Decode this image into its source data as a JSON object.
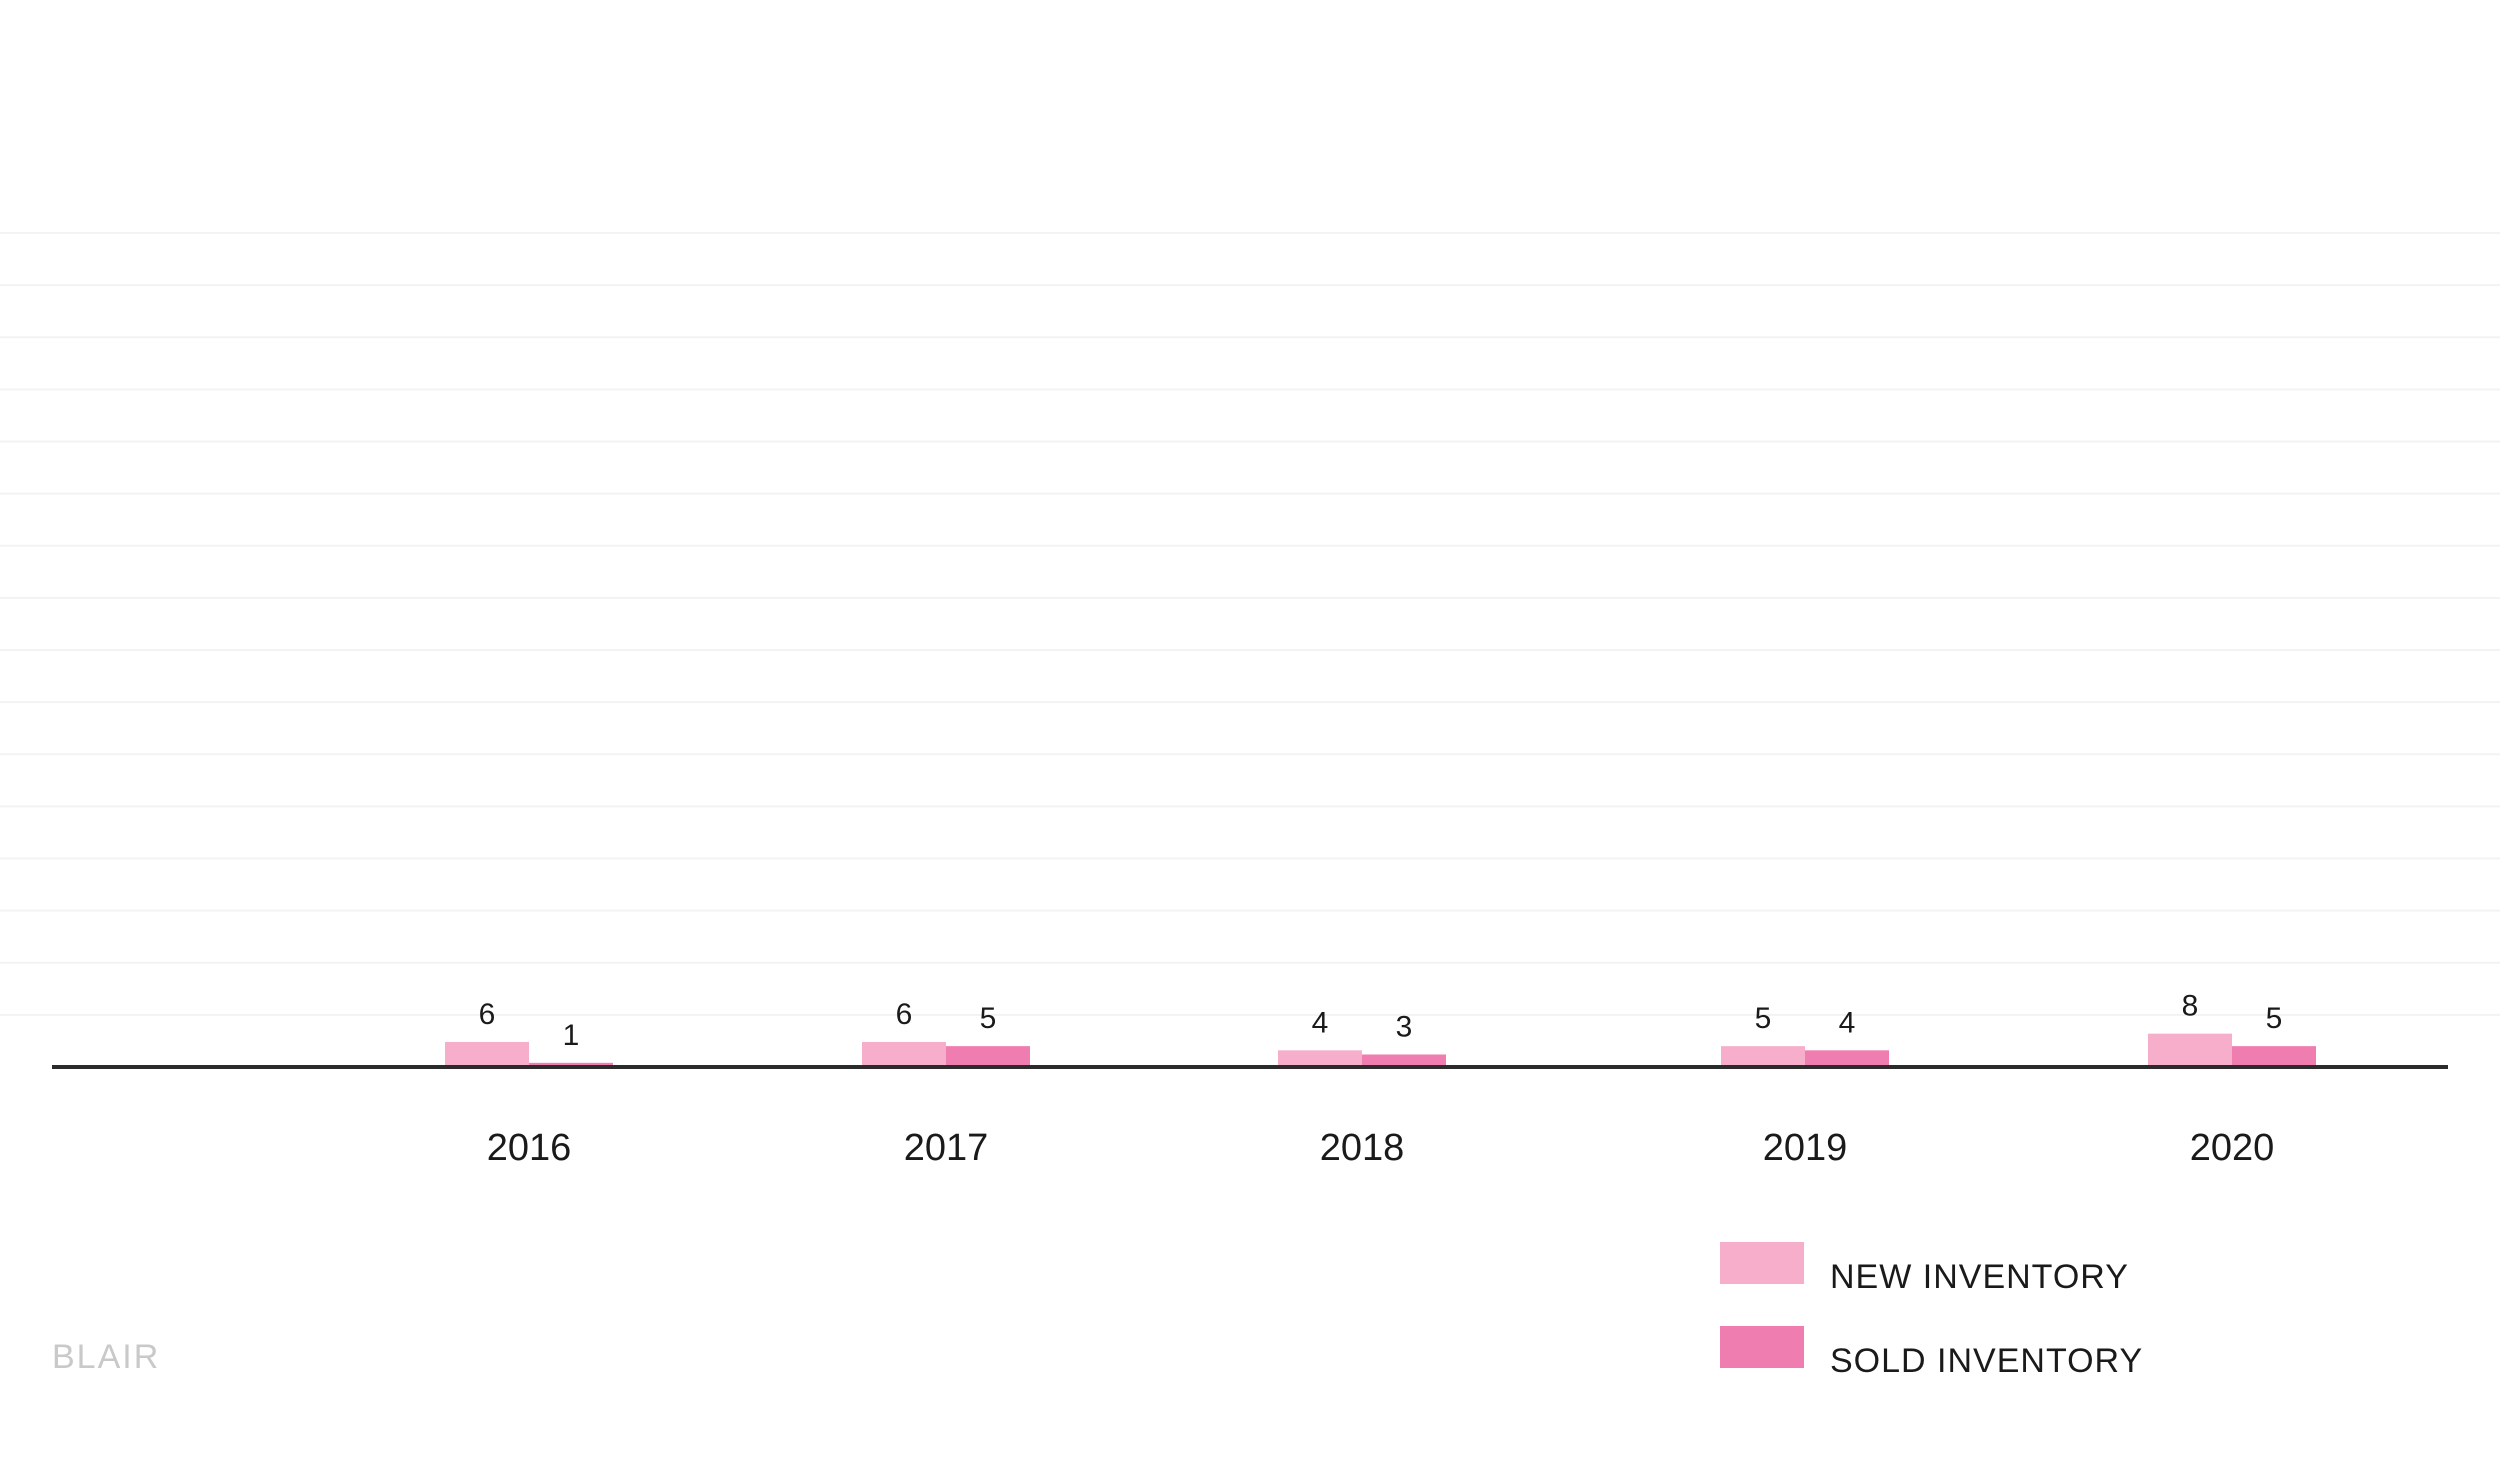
{
  "brand": "BLAIR",
  "colors": {
    "new_inventory": "#f6aecb",
    "sold_inventory": "#f07daf",
    "baseline": "#2b2b2b",
    "gridline": "#f3f3f3"
  },
  "legend": {
    "items": [
      {
        "label": "NEW INVENTORY",
        "color": "#f6aecb"
      },
      {
        "label": "SOLD INVENTORY",
        "color": "#f07daf"
      }
    ]
  },
  "chart_data": {
    "type": "bar",
    "categories": [
      "2016",
      "2017",
      "2018",
      "2019",
      "2020"
    ],
    "series": [
      {
        "name": "NEW INVENTORY",
        "values": [
          6,
          6,
          4,
          5,
          8
        ],
        "color": "#f6aecb"
      },
      {
        "name": "SOLD INVENTORY",
        "values": [
          1,
          5,
          3,
          4,
          5
        ],
        "color": "#f07daf"
      }
    ],
    "title": "",
    "xlabel": "",
    "ylabel": "",
    "ylim": [
      0,
      200
    ],
    "grid": true,
    "legend_position": "bottom-right"
  }
}
